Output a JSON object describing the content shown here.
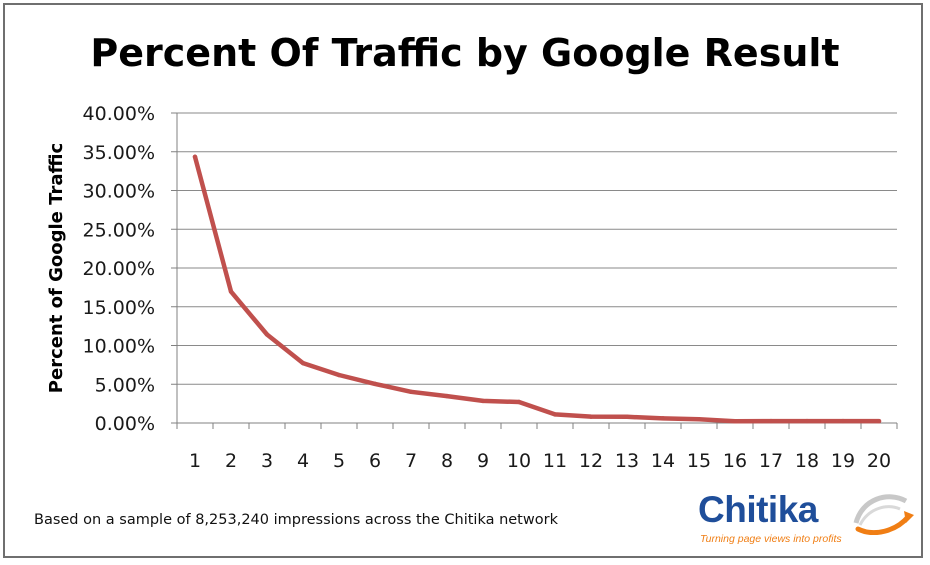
{
  "chart_data": {
    "type": "line",
    "title": "Percent Of Traffic by Google Result",
    "xlabel": "",
    "ylabel": "Percent of Google Traffic",
    "x": [
      1,
      2,
      3,
      4,
      5,
      6,
      7,
      8,
      9,
      10,
      11,
      12,
      13,
      14,
      15,
      16,
      17,
      18,
      19,
      20
    ],
    "series": [
      {
        "name": "Percent of Google Traffic",
        "values": [
          34.35,
          16.96,
          11.42,
          7.73,
          6.19,
          5.05,
          4.02,
          3.47,
          2.85,
          2.71,
          1.11,
          0.82,
          0.8,
          0.6,
          0.48,
          0.22,
          0.25,
          0.25,
          0.25,
          0.24
        ]
      }
    ],
    "ylim": [
      0,
      40
    ],
    "yticks": [
      "0.00%",
      "5.00%",
      "10.00%",
      "15.00%",
      "20.00%",
      "25.00%",
      "30.00%",
      "35.00%",
      "40.00%"
    ],
    "xticks": [
      "1",
      "2",
      "3",
      "4",
      "5",
      "6",
      "7",
      "8",
      "9",
      "10",
      "11",
      "12",
      "13",
      "14",
      "15",
      "16",
      "17",
      "18",
      "19",
      "20"
    ],
    "grid": true,
    "legend": "none",
    "line_color": "#c0504d"
  },
  "footnote": "Based on a sample of 8,253,240 impressions across the Chitika network",
  "logo": {
    "name": "Chitika",
    "tagline": "Turning page views into profits",
    "icon": "swoosh-globe-icon"
  }
}
